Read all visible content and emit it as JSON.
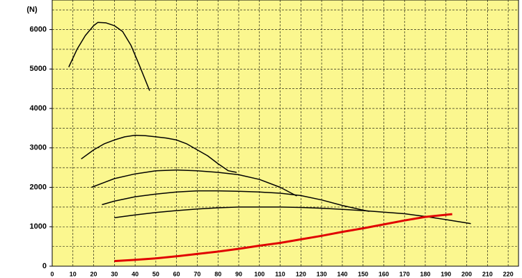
{
  "chart_data": {
    "type": "line",
    "y_unit_label": "(N)",
    "xlim": [
      0,
      225
    ],
    "ylim": [
      0,
      6750
    ],
    "xticks": [
      0,
      10,
      20,
      30,
      40,
      50,
      60,
      70,
      80,
      90,
      100,
      110,
      120,
      130,
      140,
      150,
      160,
      170,
      180,
      190,
      200,
      210,
      220
    ],
    "yticks": [
      0,
      1000,
      2000,
      3000,
      4000,
      5000,
      6000
    ],
    "ygrid": [
      500,
      1000,
      1500,
      2000,
      2500,
      3000,
      3500,
      4000,
      4500,
      5000,
      5500,
      6000,
      6500
    ],
    "grid": true,
    "background": "#fbf78f",
    "series": [
      {
        "color": "#000000",
        "width": 1.5,
        "x": [
          8,
          12,
          16,
          20,
          22,
          26,
          30,
          34,
          38,
          42,
          47
        ],
        "values": [
          5050,
          5500,
          5850,
          6100,
          6180,
          6170,
          6100,
          5950,
          5600,
          5100,
          4450
        ]
      },
      {
        "color": "#000000",
        "width": 1.5,
        "x": [
          14,
          20,
          25,
          30,
          35,
          40,
          45,
          50,
          55,
          60,
          65,
          70,
          75,
          80,
          85,
          89
        ],
        "values": [
          2720,
          2950,
          3100,
          3200,
          3280,
          3320,
          3310,
          3280,
          3250,
          3200,
          3100,
          2950,
          2800,
          2600,
          2420,
          2380
        ]
      },
      {
        "color": "#000000",
        "width": 1.5,
        "x": [
          19,
          25,
          30,
          40,
          50,
          60,
          70,
          80,
          90,
          100,
          110,
          118
        ],
        "values": [
          2000,
          2120,
          2220,
          2340,
          2420,
          2440,
          2420,
          2380,
          2320,
          2200,
          2000,
          1780
        ]
      },
      {
        "color": "#000000",
        "width": 1.5,
        "x": [
          24,
          30,
          40,
          50,
          60,
          70,
          80,
          90,
          100,
          110,
          120,
          130,
          140,
          150,
          153
        ],
        "values": [
          1560,
          1650,
          1760,
          1830,
          1880,
          1910,
          1910,
          1900,
          1880,
          1850,
          1790,
          1680,
          1540,
          1420,
          1390
        ]
      },
      {
        "color": "#000000",
        "width": 1.5,
        "x": [
          30,
          40,
          50,
          60,
          70,
          80,
          90,
          100,
          110,
          120,
          130,
          140,
          150,
          160,
          170,
          180,
          190,
          202
        ],
        "values": [
          1230,
          1300,
          1360,
          1410,
          1450,
          1480,
          1500,
          1500,
          1500,
          1490,
          1470,
          1440,
          1410,
          1370,
          1330,
          1260,
          1180,
          1080
        ]
      },
      {
        "color": "#e00000",
        "width": 3,
        "x": [
          30,
          40,
          50,
          60,
          70,
          80,
          90,
          100,
          110,
          120,
          130,
          140,
          150,
          160,
          170,
          180,
          193
        ],
        "values": [
          130,
          160,
          200,
          250,
          310,
          370,
          440,
          520,
          590,
          680,
          770,
          870,
          960,
          1060,
          1160,
          1250,
          1320
        ]
      }
    ]
  }
}
